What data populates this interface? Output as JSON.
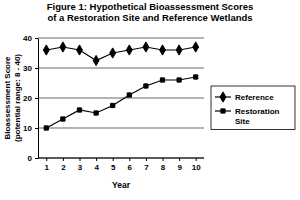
{
  "chart_data": {
    "type": "line",
    "title": "Figure 1: Hypothetical Bioassessment Scores\nof a Restoration Site and Reference Wetlands",
    "x_label": "Year",
    "y_label": "Bioassessment Score\n(potential range: 8 - 40)",
    "categories": [
      1,
      2,
      3,
      4,
      5,
      6,
      7,
      8,
      9,
      10
    ],
    "series": [
      {
        "name": "Reference",
        "color": "#000000",
        "marker": "diamond",
        "values": [
          36,
          37,
          36,
          32.5,
          35,
          36,
          37,
          36,
          36,
          37
        ]
      },
      {
        "name": "Restoration Site",
        "color": "#000000",
        "marker": "square",
        "values": [
          10,
          13,
          16,
          15,
          17.5,
          21,
          24,
          26,
          26,
          27
        ]
      }
    ],
    "ylim": [
      0,
      40
    ],
    "yticks": [
      0,
      10,
      20,
      30,
      40
    ],
    "grid": true,
    "legend": "right"
  }
}
